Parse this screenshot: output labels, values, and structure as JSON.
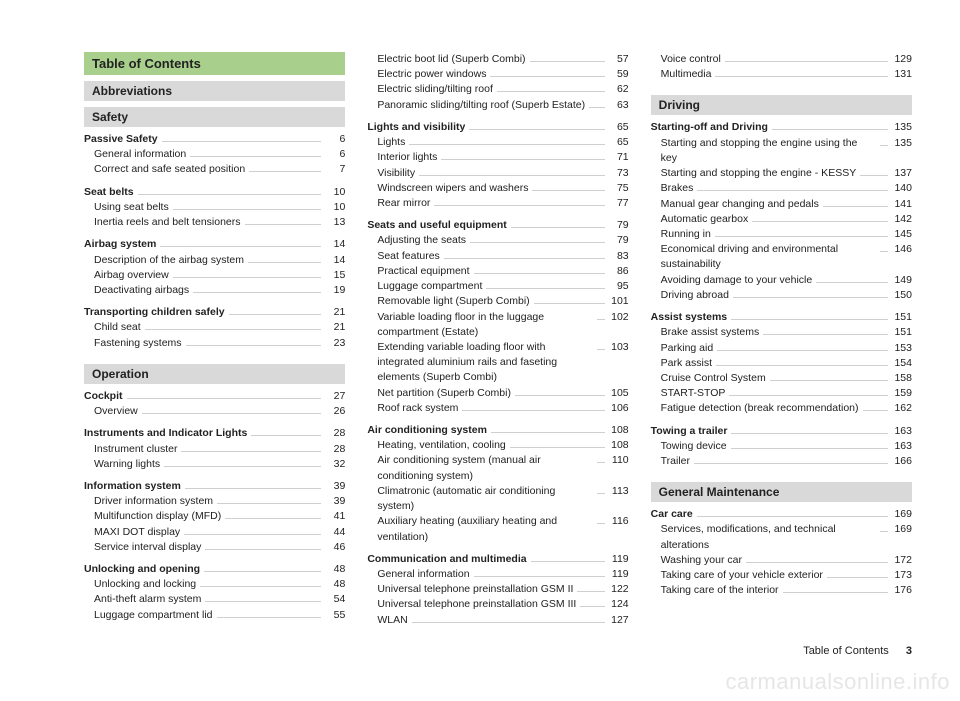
{
  "page_title": "Table of Contents",
  "footer": {
    "label": "Table of Contents",
    "page": "3"
  },
  "watermark": "carmanualsonline.info",
  "columns": [
    {
      "blocks": [
        {
          "type": "title",
          "text": "Table of Contents"
        },
        {
          "type": "section",
          "text": "Abbreviations"
        },
        {
          "type": "section",
          "text": "Safety"
        },
        {
          "type": "group",
          "head": {
            "label": "Passive Safety",
            "page": "6"
          },
          "items": [
            {
              "label": "General information",
              "page": "6"
            },
            {
              "label": "Correct and safe seated position",
              "page": "7"
            }
          ]
        },
        {
          "type": "group",
          "head": {
            "label": "Seat belts",
            "page": "10"
          },
          "items": [
            {
              "label": "Using seat belts",
              "page": "10"
            },
            {
              "label": "Inertia reels and belt tensioners",
              "page": "13"
            }
          ]
        },
        {
          "type": "group",
          "head": {
            "label": "Airbag system",
            "page": "14"
          },
          "items": [
            {
              "label": "Description of the airbag system",
              "page": "14"
            },
            {
              "label": "Airbag overview",
              "page": "15"
            },
            {
              "label": "Deactivating airbags",
              "page": "19"
            }
          ]
        },
        {
          "type": "group",
          "head": {
            "label": "Transporting children safely",
            "page": "21"
          },
          "items": [
            {
              "label": "Child seat",
              "page": "21"
            },
            {
              "label": "Fastening systems",
              "page": "23"
            }
          ]
        },
        {
          "type": "section",
          "text": "Operation"
        },
        {
          "type": "group",
          "head": {
            "label": "Cockpit",
            "page": "27"
          },
          "items": [
            {
              "label": "Overview",
              "page": "26"
            }
          ]
        },
        {
          "type": "group",
          "head": {
            "label": "Instruments and Indicator Lights",
            "page": "28"
          },
          "items": [
            {
              "label": "Instrument cluster",
              "page": "28"
            },
            {
              "label": "Warning lights",
              "page": "32"
            }
          ]
        },
        {
          "type": "group",
          "head": {
            "label": "Information system",
            "page": "39"
          },
          "items": [
            {
              "label": "Driver information system",
              "page": "39"
            },
            {
              "label": "Multifunction display (MFD)",
              "page": "41"
            },
            {
              "label": "MAXI DOT display",
              "page": "44"
            },
            {
              "label": "Service interval display",
              "page": "46"
            }
          ]
        },
        {
          "type": "group",
          "head": {
            "label": "Unlocking and opening",
            "page": "48"
          },
          "items": [
            {
              "label": "Unlocking and locking",
              "page": "48"
            },
            {
              "label": "Anti-theft alarm system",
              "page": "54"
            },
            {
              "label": "Luggage compartment lid",
              "page": "55"
            }
          ]
        }
      ]
    },
    {
      "blocks": [
        {
          "type": "group",
          "items": [
            {
              "label": "Electric boot lid (Superb Combi)",
              "page": "57"
            },
            {
              "label": "Electric power windows",
              "page": "59"
            },
            {
              "label": "Electric sliding/tilting roof",
              "page": "62"
            },
            {
              "label": "Panoramic sliding/tilting roof (Superb Estate)",
              "page": "63"
            }
          ]
        },
        {
          "type": "group",
          "head": {
            "label": "Lights and visibility",
            "page": "65"
          },
          "items": [
            {
              "label": "Lights",
              "page": "65"
            },
            {
              "label": "Interior lights",
              "page": "71"
            },
            {
              "label": "Visibility",
              "page": "73"
            },
            {
              "label": "Windscreen wipers and washers",
              "page": "75"
            },
            {
              "label": "Rear mirror",
              "page": "77"
            }
          ]
        },
        {
          "type": "group",
          "head": {
            "label": "Seats and useful equipment",
            "page": "79"
          },
          "items": [
            {
              "label": "Adjusting the seats",
              "page": "79"
            },
            {
              "label": "Seat features",
              "page": "83"
            },
            {
              "label": "Practical equipment",
              "page": "86"
            },
            {
              "label": "Luggage compartment",
              "page": "95"
            },
            {
              "label": "Removable light (Superb Combi)",
              "page": "101"
            },
            {
              "label": "Variable loading floor in the luggage compartment (Estate)",
              "page": "102"
            },
            {
              "label": "Extending variable loading floor with integrated aluminium rails and faseting elements (Superb Combi)",
              "page": "103"
            },
            {
              "label": "Net partition (Superb Combi)",
              "page": "105"
            },
            {
              "label": "Roof rack system",
              "page": "106"
            }
          ]
        },
        {
          "type": "group",
          "head": {
            "label": "Air conditioning system",
            "page": "108"
          },
          "items": [
            {
              "label": "Heating, ventilation, cooling",
              "page": "108"
            },
            {
              "label": "Air conditioning system (manual air conditioning system)",
              "page": "110"
            },
            {
              "label": "Climatronic (automatic air conditioning system)",
              "page": "113"
            },
            {
              "label": "Auxiliary heating (auxiliary heating and ventilation)",
              "page": "116"
            }
          ]
        },
        {
          "type": "group",
          "head": {
            "label": "Communication and multimedia",
            "page": "119"
          },
          "items": [
            {
              "label": "General information",
              "page": "119"
            },
            {
              "label": "Universal telephone preinstallation GSM II",
              "page": "122"
            },
            {
              "label": "Universal telephone preinstallation GSM III",
              "page": "124"
            },
            {
              "label": "WLAN",
              "page": "127"
            }
          ]
        }
      ]
    },
    {
      "blocks": [
        {
          "type": "group",
          "items": [
            {
              "label": "Voice control",
              "page": "129"
            },
            {
              "label": "Multimedia",
              "page": "131"
            }
          ]
        },
        {
          "type": "section",
          "text": "Driving"
        },
        {
          "type": "group",
          "head": {
            "label": "Starting-off and Driving",
            "page": "135"
          },
          "items": [
            {
              "label": "Starting and stopping the engine using the key",
              "page": "135"
            },
            {
              "label": "Starting and stopping the engine - KESSY",
              "page": "137"
            },
            {
              "label": "Brakes",
              "page": "140"
            },
            {
              "label": "Manual gear changing and pedals",
              "page": "141"
            },
            {
              "label": "Automatic gearbox",
              "page": "142"
            },
            {
              "label": "Running in",
              "page": "145"
            },
            {
              "label": "Economical driving and environmental sustainability",
              "page": "146"
            },
            {
              "label": "Avoiding damage to your vehicle",
              "page": "149"
            },
            {
              "label": "Driving abroad",
              "page": "150"
            }
          ]
        },
        {
          "type": "group",
          "head": {
            "label": "Assist systems",
            "page": "151"
          },
          "items": [
            {
              "label": "Brake assist systems",
              "page": "151"
            },
            {
              "label": "Parking aid",
              "page": "153"
            },
            {
              "label": "Park assist",
              "page": "154"
            },
            {
              "label": "Cruise Control System",
              "page": "158"
            },
            {
              "label": "START-STOP",
              "page": "159"
            },
            {
              "label": "Fatigue detection (break recommendation)",
              "page": "162"
            }
          ]
        },
        {
          "type": "group",
          "head": {
            "label": "Towing a trailer",
            "page": "163"
          },
          "items": [
            {
              "label": "Towing device",
              "page": "163"
            },
            {
              "label": "Trailer",
              "page": "166"
            }
          ]
        },
        {
          "type": "section",
          "text": "General Maintenance"
        },
        {
          "type": "group",
          "head": {
            "label": "Car care",
            "page": "169"
          },
          "items": [
            {
              "label": "Services, modifications, and technical alterations",
              "page": "169"
            },
            {
              "label": "Washing your car",
              "page": "172"
            },
            {
              "label": "Taking care of your vehicle exterior",
              "page": "173"
            },
            {
              "label": "Taking care of the interior",
              "page": "176"
            }
          ]
        }
      ]
    }
  ]
}
